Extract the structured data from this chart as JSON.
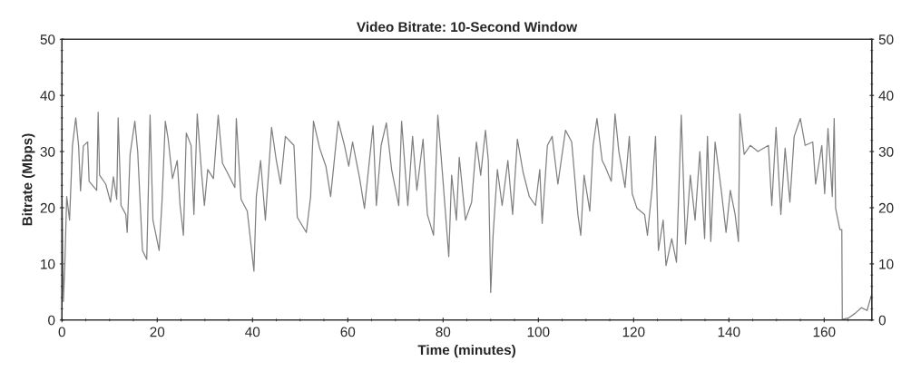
{
  "chart_data": {
    "type": "line",
    "title": "Video Bitrate: 10-Second Window",
    "xlabel": "Time (minutes)",
    "ylabel": "Bitrate (Mbps)",
    "xlim": [
      0,
      170
    ],
    "xticks": [
      0,
      20,
      40,
      60,
      80,
      100,
      120,
      140,
      160
    ],
    "ylim": [
      0,
      50
    ],
    "yticks": [
      0,
      10,
      20,
      30,
      40,
      50
    ],
    "y2lim": [
      0,
      50
    ],
    "y2ticks": [
      0,
      10,
      20,
      30,
      40,
      50
    ],
    "grid": false,
    "series": [
      {
        "color": "#808080",
        "x": [
          0,
          0.3,
          0.6,
          1,
          1.6,
          2.2,
          2.9,
          3.5,
          3.9,
          4.5,
          5.4,
          5.7,
          7.3,
          7.6,
          7.9,
          9.2,
          10.2,
          10.8,
          11.5,
          11.8,
          12.4,
          13.4,
          13.7,
          14.3,
          15.3,
          15.9,
          16.9,
          17.8,
          18.5,
          19.1,
          20.4,
          21,
          21.7,
          22.3,
          23.2,
          24.2,
          24.8,
          25.5,
          26.1,
          27.1,
          27.7,
          28.4,
          29.3,
          29.9,
          30.6,
          31.8,
          32.8,
          33.7,
          34.7,
          36.3,
          36.6,
          37.6,
          38.9,
          40.3,
          40.8,
          41.7,
          42.7,
          44,
          45,
          45.9,
          46.9,
          48.7,
          49.4,
          51.3,
          52.2,
          52.8,
          54.1,
          55.4,
          56.4,
          58,
          59.3,
          60.2,
          61,
          62.5,
          63.5,
          65.3,
          66,
          67,
          68.1,
          69.2,
          70.7,
          71.3,
          72.6,
          73.6,
          74.5,
          75.8,
          76.7,
          78,
          78.9,
          79.9,
          81.2,
          81.8,
          82.8,
          83.4,
          84.7,
          86,
          87,
          87.9,
          88.9,
          89.5,
          90,
          90.5,
          91.4,
          92.4,
          93.6,
          94.6,
          95.6,
          96.8,
          98.1,
          99.4,
          100.3,
          100.8,
          101.9,
          102.9,
          104.1,
          105.7,
          107,
          108.3,
          108.9,
          109.6,
          110.8,
          111.5,
          112.3,
          113.4,
          114,
          115.3,
          116.1,
          116.9,
          118.2,
          119.1,
          119.7,
          120.7,
          122.3,
          122.9,
          123.9,
          124.6,
          125.2,
          126.2,
          126.8,
          128,
          129,
          130,
          130.9,
          131.9,
          132.9,
          133.9,
          134.9,
          135.5,
          136.2,
          137.1,
          138.4,
          139.4,
          140.3,
          141.3,
          142,
          142.3,
          143.2,
          144.5,
          146.1,
          148.3,
          149,
          149.9,
          150.9,
          151.8,
          152.8,
          153.7,
          155,
          156,
          157.6,
          158.2,
          159.5,
          160.1,
          160.8,
          161.7,
          162.1,
          162.4,
          163.3,
          163.7,
          163.8,
          165.2,
          166.5,
          167.8,
          169,
          169.9
        ],
        "values": [
          24.2,
          3.3,
          9.7,
          22,
          17.8,
          31,
          36,
          31,
          23,
          31,
          31.7,
          24.7,
          23.1,
          37,
          25.8,
          24.2,
          21,
          25.5,
          21.5,
          36,
          20.4,
          18.8,
          15.6,
          29.5,
          35.4,
          30,
          12.4,
          10.8,
          36.5,
          17.8,
          12.4,
          21,
          35.4,
          32.2,
          25.2,
          28.4,
          20.4,
          15.1,
          33.3,
          31.1,
          18.8,
          36.7,
          26.3,
          20.4,
          26.8,
          25.2,
          36.5,
          27.9,
          26.3,
          23.6,
          35.9,
          21.5,
          19.4,
          8.7,
          22,
          28.4,
          17.8,
          34.3,
          28.4,
          24.2,
          32.7,
          31.1,
          18.3,
          15.6,
          22,
          35.4,
          30.6,
          27.4,
          22,
          35.4,
          31.1,
          27.4,
          31.7,
          25.2,
          19.9,
          34.6,
          20.4,
          31.1,
          35.1,
          26.8,
          20.4,
          35.4,
          20.4,
          32.7,
          23.1,
          32.2,
          18.8,
          15.1,
          36.5,
          25.8,
          11.3,
          25.8,
          17.8,
          29,
          17.8,
          21,
          31.7,
          25.8,
          33.8,
          28.4,
          4.9,
          15.1,
          26.8,
          20.4,
          28.4,
          18.8,
          32.2,
          26.3,
          22,
          20.4,
          26.8,
          17.2,
          31.1,
          32.7,
          24.2,
          33.8,
          31.7,
          18.8,
          15.1,
          25.8,
          19.4,
          31.1,
          35.9,
          28.4,
          27.4,
          24.7,
          36.7,
          30,
          23.6,
          32.7,
          22.5,
          19.9,
          18.8,
          15.1,
          23.6,
          32.7,
          12.4,
          17.8,
          9.7,
          14.5,
          10.3,
          36.5,
          13.5,
          25.8,
          17.8,
          30,
          14.5,
          32.7,
          14,
          31.7,
          23.1,
          15.6,
          23.1,
          18.8,
          14,
          36.7,
          29.5,
          31.1,
          30,
          31.1,
          20.4,
          34.3,
          18.8,
          30.6,
          21,
          32.7,
          35.9,
          31.1,
          31.7,
          24.2,
          31.1,
          22.5,
          34.1,
          22,
          35.9,
          19.9,
          16.1,
          16.1,
          0.1,
          0.4,
          1.2,
          2.2,
          1.7,
          4.4
        ]
      }
    ]
  }
}
